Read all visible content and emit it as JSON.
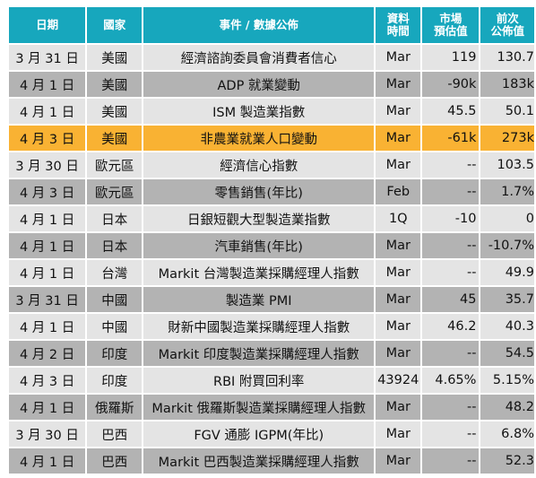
{
  "headers": {
    "date": "日期",
    "country": "國家",
    "event": "事件 / 數據公佈",
    "period_line1": "資料",
    "period_line2": "時間",
    "forecast_line1": "市場",
    "forecast_line2": "預估值",
    "previous_line1": "前次",
    "previous_line2": "公佈值"
  },
  "rows": [
    {
      "date": "3 月 31 日",
      "country": "美國",
      "event": "經濟諮詢委員會消費者信心",
      "period": "Mar",
      "forecast": "119",
      "previous": "130.7"
    },
    {
      "date": "4 月 1 日",
      "country": "美國",
      "event": "ADP 就業變動",
      "period": "Mar",
      "forecast": "-90k",
      "previous": "183k"
    },
    {
      "date": "4 月 1 日",
      "country": "美國",
      "event": "ISM 製造業指數",
      "period": "Mar",
      "forecast": "45.5",
      "previous": "50.1"
    },
    {
      "date": "4 月 3 日",
      "country": "美國",
      "event": "非農業就業人口變動",
      "period": "Mar",
      "forecast": "-61k",
      "previous": "273k"
    },
    {
      "date": "3 月 30 日",
      "country": "歐元區",
      "event": "經濟信心指數",
      "period": "Mar",
      "forecast": "--",
      "previous": "103.5"
    },
    {
      "date": "4 月 3 日",
      "country": "歐元區",
      "event": "零售銷售(年比)",
      "period": "Feb",
      "forecast": "--",
      "previous": "1.7%"
    },
    {
      "date": "4 月 1 日",
      "country": "日本",
      "event": "日銀短觀大型製造業指數",
      "period": "1Q",
      "forecast": "-10",
      "previous": "0"
    },
    {
      "date": "4 月 1 日",
      "country": "日本",
      "event": "汽車銷售(年比)",
      "period": "Mar",
      "forecast": "--",
      "previous": "-10.7%"
    },
    {
      "date": "4 月 1 日",
      "country": "台灣",
      "event": "Markit 台灣製造業採購經理人指數",
      "period": "Mar",
      "forecast": "--",
      "previous": "49.9"
    },
    {
      "date": "3 月 31 日",
      "country": "中國",
      "event": "製造業 PMI",
      "period": "Mar",
      "forecast": "45",
      "previous": "35.7"
    },
    {
      "date": "4 月 1 日",
      "country": "中國",
      "event": "財新中國製造業採購經理人指數",
      "period": "Mar",
      "forecast": "46.2",
      "previous": "40.3"
    },
    {
      "date": "4 月 2 日",
      "country": "印度",
      "event": "Markit 印度製造業採購經理人指數",
      "period": "Mar",
      "forecast": "--",
      "previous": "54.5"
    },
    {
      "date": "4 月 3 日",
      "country": "印度",
      "event": "RBI 附買回利率",
      "period": "43924",
      "forecast": "4.65%",
      "previous": "5.15%"
    },
    {
      "date": "4 月 1 日",
      "country": "俄羅斯",
      "event": "Markit 俄羅斯製造業採購經理人指數",
      "period": "Mar",
      "forecast": "--",
      "previous": "48.2"
    },
    {
      "date": "3 月 30 日",
      "country": "巴西",
      "event": "FGV 通膨 IGPM(年比)",
      "period": "Mar",
      "forecast": "--",
      "previous": "6.8%"
    },
    {
      "date": "4 月 1 日",
      "country": "巴西",
      "event": "Markit 巴西製造業採購經理人指數",
      "period": "Mar",
      "forecast": "--",
      "previous": "52.3"
    }
  ],
  "colors": {
    "header_bg": "#17a7bd",
    "row_light": "#e4e4e4",
    "row_dark": "#b3b3b3",
    "row_highlight": "#f9b233"
  },
  "highlight_row_index": 3
}
